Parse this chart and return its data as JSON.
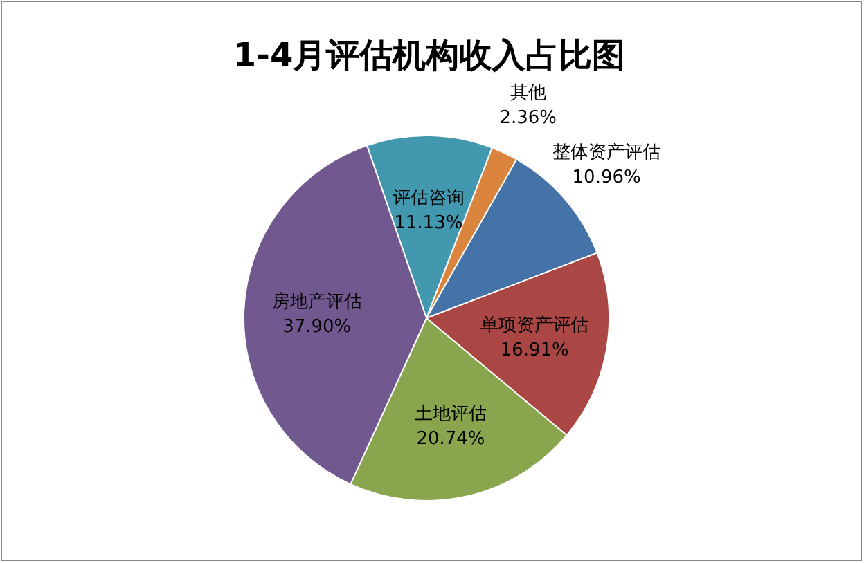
{
  "chart_data": {
    "type": "pie",
    "title": "1-4月评估机构收入占比图",
    "categories": [
      "评估咨询",
      "其他",
      "整体资产评估",
      "单项资产评估",
      "土地评估",
      "房地产评估"
    ],
    "values": [
      11.13,
      2.36,
      10.96,
      16.91,
      20.74,
      37.9
    ],
    "value_labels": [
      "11.13%",
      "2.36%",
      "10.96%",
      "16.91%",
      "20.74%",
      "37.90%"
    ],
    "colors": [
      "#4198af",
      "#db843d",
      "#4572a7",
      "#aa4643",
      "#89a54e",
      "#71588f"
    ],
    "legend": false
  }
}
